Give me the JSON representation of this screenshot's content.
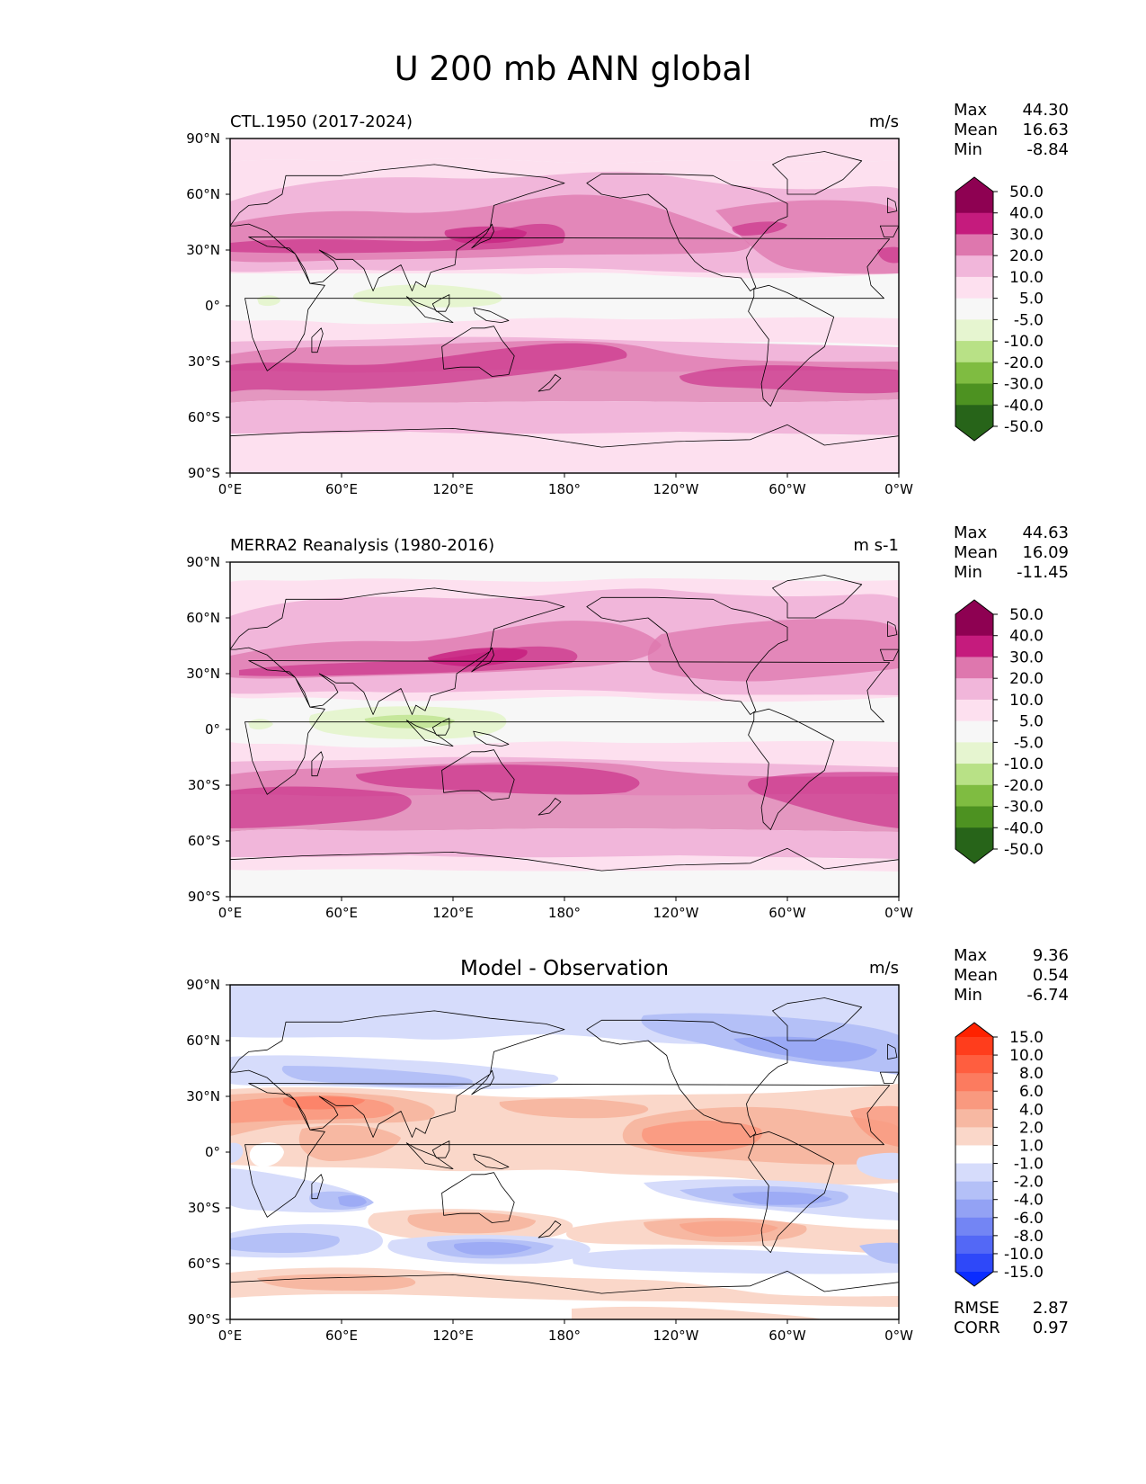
{
  "title": "U 200 mb ANN global",
  "colors": {
    "land_outline": "#000000",
    "frame": "#000000",
    "background": "#ffffff"
  },
  "chart_data": [
    {
      "type": "contour_map",
      "title": "CTL.1950 (2017-2024)",
      "units": "m/s",
      "stats": [
        {
          "label": "Max",
          "value": "44.30"
        },
        {
          "label": "Mean",
          "value": "16.63"
        },
        {
          "label": "Min",
          "value": "-8.84"
        }
      ],
      "xticks": [
        "0°E",
        "60°E",
        "120°E",
        "180°",
        "120°W",
        "60°W",
        "0°W"
      ],
      "yticks": [
        "90°N",
        "60°N",
        "30°N",
        "0°",
        "30°S",
        "60°S",
        "90°S"
      ],
      "xlim": [
        0,
        360
      ],
      "ylim": [
        -90,
        90
      ],
      "colorbar": {
        "extend": "both",
        "labels": [
          "50.0",
          "40.0",
          "30.0",
          "20.0",
          "10.0",
          "5.0",
          "-5.0",
          "-10.0",
          "-20.0",
          "-30.0",
          "-40.0",
          "-50.0"
        ],
        "colors": [
          "#8e0152",
          "#c51b7d",
          "#de77ae",
          "#f1b6da",
          "#fde0ef",
          "#f7f7f7",
          "#e6f5d0",
          "#b8e186",
          "#7fbc41",
          "#4d9221",
          "#276419"
        ],
        "top_color": "#8e0152",
        "bottom_color": "#276419"
      }
    },
    {
      "type": "contour_map",
      "title": "MERRA2 Reanalysis (1980-2016)",
      "units": "m s-1",
      "stats": [
        {
          "label": "Max",
          "value": "44.63"
        },
        {
          "label": "Mean",
          "value": "16.09"
        },
        {
          "label": "Min",
          "value": "-11.45"
        }
      ],
      "xticks": [
        "0°E",
        "60°E",
        "120°E",
        "180°",
        "120°W",
        "60°W",
        "0°W"
      ],
      "yticks": [
        "90°N",
        "60°N",
        "30°N",
        "0°",
        "30°S",
        "60°S",
        "90°S"
      ],
      "xlim": [
        0,
        360
      ],
      "ylim": [
        -90,
        90
      ],
      "colorbar": {
        "extend": "both",
        "labels": [
          "50.0",
          "40.0",
          "30.0",
          "20.0",
          "10.0",
          "5.0",
          "-5.0",
          "-10.0",
          "-20.0",
          "-30.0",
          "-40.0",
          "-50.0"
        ],
        "colors": [
          "#8e0152",
          "#c51b7d",
          "#de77ae",
          "#f1b6da",
          "#fde0ef",
          "#f7f7f7",
          "#e6f5d0",
          "#b8e186",
          "#7fbc41",
          "#4d9221",
          "#276419"
        ],
        "top_color": "#8e0152",
        "bottom_color": "#276419"
      }
    },
    {
      "type": "contour_map",
      "title": "Model - Observation",
      "units": "m/s",
      "stats": [
        {
          "label": "Max",
          "value": "9.36"
        },
        {
          "label": "Mean",
          "value": "0.54"
        },
        {
          "label": "Min",
          "value": "-6.74"
        }
      ],
      "extra_stats": [
        {
          "label": "RMSE",
          "value": "2.87"
        },
        {
          "label": "CORR",
          "value": "0.97"
        }
      ],
      "xticks": [
        "0°E",
        "60°E",
        "120°E",
        "180°",
        "120°W",
        "60°W",
        "0°W"
      ],
      "yticks": [
        "90°N",
        "60°N",
        "30°N",
        "0°",
        "30°S",
        "60°S",
        "90°S"
      ],
      "xlim": [
        0,
        360
      ],
      "ylim": [
        -90,
        90
      ],
      "colorbar": {
        "extend": "both",
        "labels": [
          "15.0",
          "10.0",
          "8.0",
          "6.0",
          "4.0",
          "2.0",
          "1.0",
          "-1.0",
          "-2.0",
          "-4.0",
          "-6.0",
          "-8.0",
          "-10.0",
          "-15.0"
        ],
        "colors": [
          "#ff3d1c",
          "#ff5e3f",
          "#fc7b5f",
          "#f9997f",
          "#f7b8a2",
          "#fad7c9",
          "#ffffff",
          "#d6dcfb",
          "#b4c0f7",
          "#93a2f4",
          "#7385f4",
          "#5368f6",
          "#2e48f9"
        ],
        "top_color": "#ff2200",
        "bottom_color": "#0a2cff"
      }
    }
  ]
}
